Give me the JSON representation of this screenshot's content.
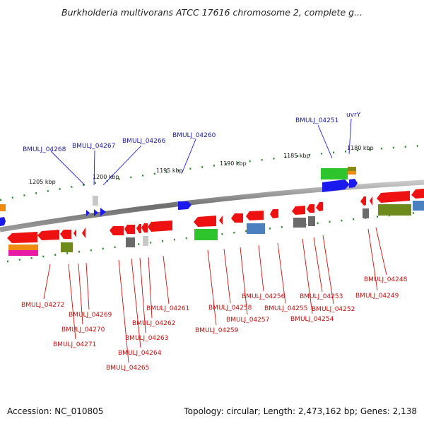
{
  "title": "Burkholderia multivorans ATCC 17616 chromosome 2, complete g...",
  "accession": "Accession: NC_010805",
  "topology": "Topology: circular; Length: 2,473,162 bp; Genes: 2,138",
  "ticks": [
    "1205 kbp",
    "1200 kbp",
    "1195 kbp",
    "1190 kbp",
    "1185 kbp",
    "1180 kbp"
  ],
  "top_labels": [
    "BMULJ_04268",
    "BMULJ_04267",
    "BMULJ_04266",
    "BMULJ_04260",
    "BMULJ_04251",
    "uvrY"
  ],
  "bottom_labels": [
    "BMULJ_04272",
    "BMULJ_04269",
    "BMULJ_04270",
    "BMULJ_04271",
    "BMULJ_04261",
    "BMULJ_04262",
    "BMULJ_04263",
    "BMULJ_04264",
    "BMULJ_04265",
    "BMULJ_04258",
    "BMULJ_04259",
    "BMULJ_04257",
    "BMULJ_04256",
    "BMULJ_04255",
    "BMULJ_04253",
    "BMULJ_04252",
    "BMULJ_04254",
    "BMULJ_04248",
    "BMULJ_04249"
  ],
  "colors": {
    "backbone": "#808080",
    "forward_gene": "#1010ee",
    "reverse_gene": "#ee1111",
    "top_label": "#1a1aa6",
    "bottom_label": "#c81010",
    "tick": "#2a8a2a"
  }
}
